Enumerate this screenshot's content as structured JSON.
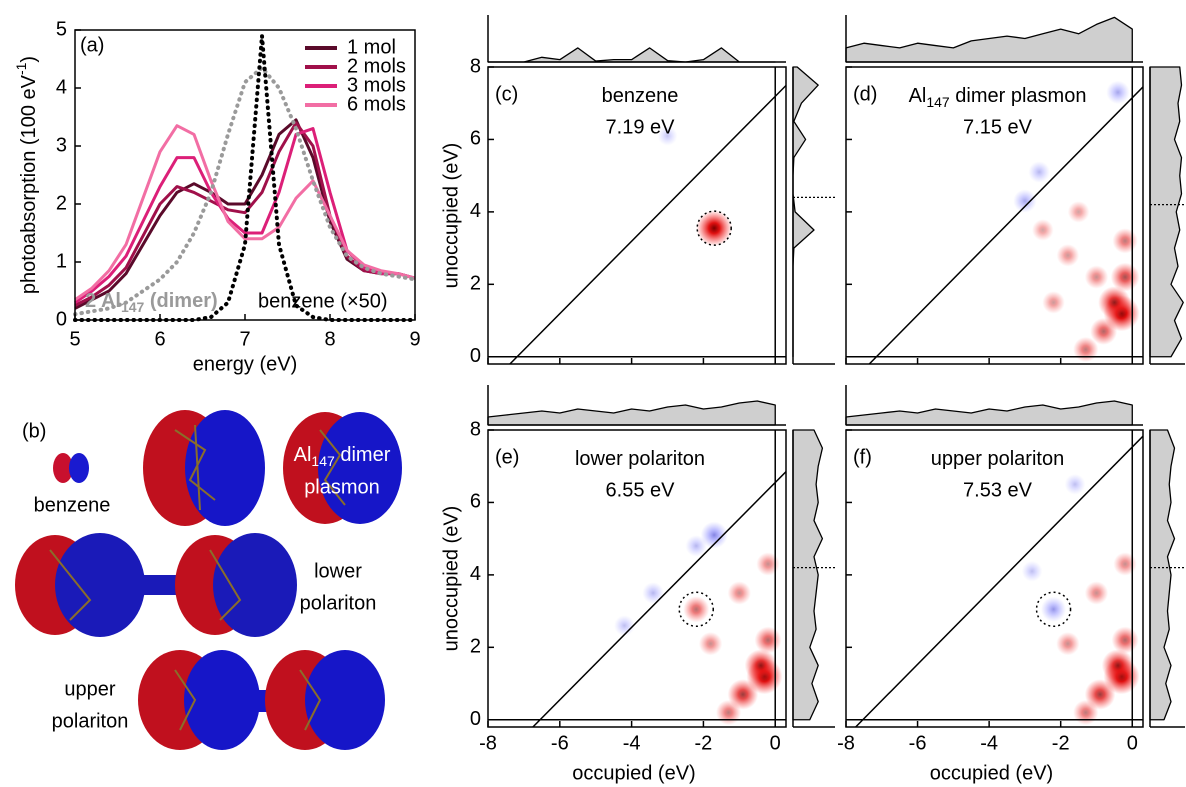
{
  "chart_data": [
    {
      "type": "line",
      "panel_label": "(a)",
      "xlabel": "energy (eV)",
      "ylabel_parts": [
        "photoabsorption (100 eV",
        "-1",
        ")"
      ],
      "x": [
        5.0,
        5.2,
        5.4,
        5.6,
        5.8,
        6.0,
        6.2,
        6.4,
        6.6,
        6.8,
        7.0,
        7.2,
        7.4,
        7.6,
        7.8,
        8.0,
        8.2,
        8.4,
        8.6,
        8.8,
        9.0
      ],
      "series": [
        {
          "name": "1 mol",
          "color": "#5a0a2a",
          "dash": "solid",
          "values": [
            0.2,
            0.35,
            0.5,
            0.8,
            1.3,
            1.8,
            2.2,
            2.35,
            2.2,
            2.0,
            2.0,
            2.5,
            3.2,
            3.45,
            2.8,
            1.7,
            1.05,
            0.85,
            0.8,
            0.8,
            0.72
          ]
        },
        {
          "name": "2 mols",
          "color": "#a0104a",
          "dash": "solid",
          "values": [
            0.25,
            0.4,
            0.6,
            0.9,
            1.45,
            2.0,
            2.3,
            2.2,
            2.05,
            1.9,
            1.85,
            2.2,
            2.9,
            3.4,
            3.0,
            1.8,
            1.1,
            0.85,
            0.8,
            0.8,
            0.72
          ]
        },
        {
          "name": "3 mols",
          "color": "#dc1f78",
          "dash": "solid",
          "values": [
            0.3,
            0.5,
            0.75,
            1.1,
            1.7,
            2.3,
            2.8,
            2.8,
            2.2,
            1.75,
            1.5,
            1.5,
            2.2,
            3.2,
            3.3,
            2.2,
            1.2,
            0.9,
            0.8,
            0.8,
            0.72
          ]
        },
        {
          "name": "6 mols",
          "color": "#f26ea4",
          "dash": "solid",
          "values": [
            0.35,
            0.55,
            0.85,
            1.3,
            2.1,
            2.9,
            3.35,
            3.2,
            2.4,
            1.7,
            1.4,
            1.4,
            1.6,
            2.1,
            2.4,
            1.8,
            1.2,
            0.95,
            0.85,
            0.8,
            0.72
          ]
        },
        {
          "label_parts": [
            "2 Al",
            "147",
            " (dimer)"
          ],
          "color": "#9a9a9a",
          "dash": "dotted",
          "values": [
            0.1,
            0.15,
            0.2,
            0.3,
            0.5,
            0.7,
            1.0,
            1.5,
            2.2,
            3.2,
            4.1,
            4.35,
            4.0,
            3.3,
            2.4,
            1.6,
            1.1,
            0.9,
            0.8,
            0.75,
            0.7
          ]
        },
        {
          "label": "benzene (×50)",
          "color": "#000000",
          "dash": "dotted",
          "values": [
            0,
            0,
            0,
            0,
            0,
            0,
            0,
            0,
            0.05,
            0.3,
            1.3,
            4.9,
            1.3,
            0.25,
            0.05,
            0,
            0,
            0,
            0,
            0,
            0
          ]
        }
      ],
      "xlim": [
        5,
        9
      ],
      "ylim": [
        0,
        5
      ],
      "xticks": [
        5,
        6,
        7,
        8,
        9
      ],
      "yticks": [
        0,
        1,
        2,
        3,
        4,
        5
      ],
      "legend": "upper right"
    },
    {
      "type": "heatmap",
      "panel_label": "(c)",
      "title_parts": [
        "benzene"
      ],
      "energy": 7.19,
      "energy_label": "7.19 eV",
      "ylabel": "unoccupied (eV)",
      "show_xticklabels": false,
      "show_yticklabels": true,
      "xlim": [
        -8,
        0.3
      ],
      "ylim": [
        -0.2,
        8
      ],
      "xticks": [
        -8,
        -6,
        -4,
        -2,
        0
      ],
      "yticks": [
        0,
        2,
        4,
        6,
        8
      ],
      "spots": [
        [
          -1.7,
          3.55,
          1.0
        ],
        [
          -3.0,
          6.1,
          -0.1
        ]
      ],
      "highlight": [
        -1.7,
        3.55
      ],
      "reference_level": 4.4,
      "occupied_dos": {
        "x": [
          -8,
          -7.5,
          -7,
          -6.5,
          -6,
          -5.5,
          -5,
          -4.5,
          -4,
          -3.5,
          -3,
          -2.5,
          -2,
          -1.5,
          -1,
          -0.5,
          0
        ],
        "values": [
          0,
          0,
          0,
          0.1,
          0.05,
          0.3,
          0.02,
          0.05,
          0.05,
          0.3,
          0.03,
          0,
          0.05,
          0.3,
          0,
          0,
          0
        ],
        "lim": [
          0,
          1
        ]
      },
      "unoccupied_dos": {
        "x": [
          0,
          0.5,
          1,
          1.5,
          2,
          2.5,
          3,
          3.5,
          4,
          4.5,
          5,
          5.5,
          6,
          6.5,
          7,
          7.5,
          8
        ],
        "values": [
          0,
          0,
          0,
          0,
          0,
          0,
          0.02,
          0.5,
          0.05,
          0,
          0,
          0.02,
          0.3,
          0.02,
          0.2,
          0.6,
          0.1
        ],
        "lim": [
          0,
          1
        ]
      }
    },
    {
      "type": "heatmap",
      "panel_label": "(d)",
      "title_parts": [
        "Al",
        "147",
        " dimer plasmon"
      ],
      "energy": 7.15,
      "energy_label": "7.15 eV",
      "show_xticklabels": false,
      "show_yticklabels": false,
      "xlim": [
        -8,
        0.3
      ],
      "ylim": [
        -0.2,
        8
      ],
      "xticks": [
        -8,
        -6,
        -4,
        -2,
        0
      ],
      "yticks": [
        0,
        2,
        4,
        6,
        8
      ],
      "spots": [
        [
          -0.3,
          1.2,
          1.0
        ],
        [
          -0.5,
          1.5,
          0.8
        ],
        [
          -0.2,
          2.2,
          0.6
        ],
        [
          -0.8,
          0.7,
          0.5
        ],
        [
          -1.3,
          0.2,
          0.4
        ],
        [
          -0.2,
          3.2,
          0.4
        ],
        [
          -1.0,
          2.2,
          0.3
        ],
        [
          -2.2,
          1.5,
          0.25
        ],
        [
          -1.8,
          2.8,
          0.25
        ],
        [
          -2.5,
          3.5,
          0.2
        ],
        [
          -3.0,
          4.3,
          -0.3
        ],
        [
          -2.6,
          5.1,
          -0.2
        ],
        [
          -0.4,
          7.3,
          -0.3
        ],
        [
          -1.5,
          4.0,
          0.2
        ]
      ],
      "reference_level": 4.2,
      "occupied_dos": {
        "x": [
          -8,
          -7.5,
          -7,
          -6.5,
          -6,
          -5.5,
          -5,
          -4.5,
          -4,
          -3.5,
          -3,
          -2.5,
          -2,
          -1.5,
          -1,
          -0.5,
          0
        ],
        "values": [
          0.3,
          0.4,
          0.35,
          0.3,
          0.4,
          0.35,
          0.3,
          0.45,
          0.5,
          0.55,
          0.5,
          0.6,
          0.7,
          0.6,
          0.8,
          0.95,
          0.7
        ],
        "lim": [
          0,
          1
        ]
      },
      "unoccupied_dos": {
        "x": [
          0,
          0.5,
          1,
          1.5,
          2,
          2.5,
          3,
          3.5,
          4,
          4.5,
          5,
          5.5,
          6,
          6.5,
          7,
          7.5,
          8
        ],
        "values": [
          0.6,
          0.9,
          0.7,
          0.95,
          0.6,
          0.8,
          0.7,
          0.85,
          0.75,
          0.9,
          0.85,
          0.9,
          0.7,
          0.85,
          0.8,
          0.9,
          0.85
        ],
        "lim": [
          0,
          1
        ]
      }
    },
    {
      "type": "heatmap",
      "panel_label": "(e)",
      "title_parts": [
        "lower polariton"
      ],
      "energy": 6.55,
      "energy_label": "6.55 eV",
      "ylabel": "unoccupied (eV)",
      "xlabel": "occupied (eV)",
      "show_xticklabels": true,
      "show_yticklabels": true,
      "xlim": [
        -8,
        0.3
      ],
      "ylim": [
        -0.2,
        8
      ],
      "xticks": [
        -8,
        -6,
        -4,
        -2,
        0
      ],
      "yticks": [
        0,
        2,
        4,
        6,
        8
      ],
      "spots": [
        [
          -0.3,
          1.2,
          1.0
        ],
        [
          -0.4,
          1.5,
          0.8
        ],
        [
          -0.9,
          0.7,
          0.7
        ],
        [
          -0.2,
          2.2,
          0.5
        ],
        [
          -1.3,
          0.2,
          0.4
        ],
        [
          -2.2,
          3.05,
          0.45
        ],
        [
          -1.7,
          5.1,
          -0.5
        ],
        [
          -2.2,
          4.8,
          -0.2
        ],
        [
          -3.4,
          3.5,
          -0.2
        ],
        [
          -4.2,
          2.6,
          -0.15
        ],
        [
          -1.8,
          2.1,
          0.3
        ],
        [
          -1.0,
          3.5,
          0.3
        ],
        [
          -0.2,
          4.3,
          0.3
        ]
      ],
      "highlight": [
        -2.2,
        3.05
      ],
      "reference_level": 4.2,
      "occupied_dos": {
        "x": [
          -8,
          -7.5,
          -7,
          -6.5,
          -6,
          -5.5,
          -5,
          -4.5,
          -4,
          -3.5,
          -3,
          -2.5,
          -2,
          -1.5,
          -1,
          -0.5,
          0
        ],
        "values": [
          0.2,
          0.25,
          0.3,
          0.35,
          0.3,
          0.4,
          0.35,
          0.3,
          0.4,
          0.35,
          0.45,
          0.5,
          0.4,
          0.45,
          0.55,
          0.6,
          0.5
        ],
        "lim": [
          0,
          1
        ]
      },
      "unoccupied_dos": {
        "x": [
          0,
          0.5,
          1,
          1.5,
          2,
          2.5,
          3,
          3.5,
          4,
          4.5,
          5,
          5.5,
          6,
          6.5,
          7,
          7.5,
          8
        ],
        "values": [
          0.4,
          0.6,
          0.45,
          0.6,
          0.4,
          0.55,
          0.5,
          0.55,
          0.6,
          0.5,
          0.7,
          0.5,
          0.6,
          0.55,
          0.6,
          0.7,
          0.5
        ],
        "lim": [
          0,
          1
        ]
      }
    },
    {
      "type": "heatmap",
      "panel_label": "(f)",
      "title_parts": [
        "upper polariton"
      ],
      "energy": 7.53,
      "energy_label": "7.53 eV",
      "xlabel": "occupied (eV)",
      "show_xticklabels": true,
      "show_yticklabels": false,
      "xlim": [
        -8,
        0.3
      ],
      "ylim": [
        -0.2,
        8
      ],
      "xticks": [
        -8,
        -6,
        -4,
        -2,
        0
      ],
      "yticks": [
        0,
        2,
        4,
        6,
        8
      ],
      "spots": [
        [
          -0.3,
          1.2,
          1.0
        ],
        [
          -0.4,
          1.5,
          0.8
        ],
        [
          -0.9,
          0.7,
          0.7
        ],
        [
          -0.2,
          2.2,
          0.5
        ],
        [
          -1.3,
          0.2,
          0.4
        ],
        [
          -2.2,
          3.05,
          -0.4
        ],
        [
          -1.8,
          2.1,
          0.3
        ],
        [
          -1.0,
          3.5,
          0.3
        ],
        [
          -0.2,
          4.3,
          0.3
        ],
        [
          -2.8,
          4.1,
          -0.15
        ],
        [
          -1.6,
          6.5,
          -0.15
        ]
      ],
      "highlight": [
        -2.2,
        3.05
      ],
      "reference_level": 4.2,
      "occupied_dos": {
        "x": [
          -8,
          -7.5,
          -7,
          -6.5,
          -6,
          -5.5,
          -5,
          -4.5,
          -4,
          -3.5,
          -3,
          -2.5,
          -2,
          -1.5,
          -1,
          -0.5,
          0
        ],
        "values": [
          0.2,
          0.25,
          0.3,
          0.35,
          0.3,
          0.4,
          0.35,
          0.3,
          0.4,
          0.35,
          0.45,
          0.5,
          0.4,
          0.45,
          0.55,
          0.6,
          0.5
        ],
        "lim": [
          0,
          1
        ]
      },
      "unoccupied_dos": {
        "x": [
          0,
          0.5,
          1,
          1.5,
          2,
          2.5,
          3,
          3.5,
          4,
          4.5,
          5,
          5.5,
          6,
          6.5,
          7,
          7.5,
          8
        ],
        "values": [
          0.4,
          0.6,
          0.45,
          0.6,
          0.4,
          0.55,
          0.5,
          0.55,
          0.6,
          0.5,
          0.7,
          0.5,
          0.6,
          0.55,
          0.6,
          0.7,
          0.5
        ],
        "lim": [
          0,
          1
        ]
      }
    }
  ],
  "figure_b": {
    "panel_label": "(b)",
    "benzene": "benzene",
    "al_dimer_parts": [
      "Al",
      "147",
      " dimer"
    ],
    "al_dimer_line2": "plasmon",
    "lower": [
      "lower",
      "polariton"
    ],
    "upper": [
      "upper",
      "polariton"
    ]
  }
}
